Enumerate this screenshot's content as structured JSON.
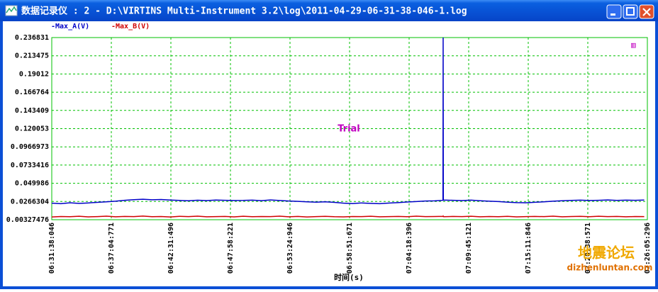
{
  "window": {
    "title": "数据记录仪 : 2 - D:\\VIRTINS Multi-Instrument 3.2\\log\\2011-04-29-06-31-38-046-1.log"
  },
  "chart_data": {
    "type": "line",
    "annotation": "Trial",
    "x_label": "时间(s)",
    "x": [
      0,
      50,
      100,
      150,
      200,
      250,
      300,
      350,
      400,
      450,
      500,
      550,
      600,
      650,
      700,
      750,
      800,
      850,
      900,
      950,
      1000,
      1050,
      1100,
      1150,
      1200,
      1250,
      1300,
      1350,
      1400,
      1450,
      1500,
      1550,
      1600,
      1650,
      1700,
      1750,
      1800,
      1850,
      1900,
      1950,
      2000,
      2050,
      2100,
      2146,
      2147,
      2148,
      2150,
      2200,
      2250,
      2300,
      2350,
      2400,
      2450,
      2500,
      2550,
      2600,
      2650,
      2700,
      2750,
      2800,
      2850,
      2900,
      2950,
      3000,
      3050,
      3100,
      3150,
      3200,
      3250
    ],
    "series": [
      {
        "name": "-Max_A(V)",
        "color": "#0000c8",
        "values": [
          0.0245,
          0.0238,
          0.025,
          0.0242,
          0.0248,
          0.0255,
          0.0262,
          0.027,
          0.0282,
          0.029,
          0.0295,
          0.0288,
          0.0292,
          0.0285,
          0.028,
          0.0276,
          0.0283,
          0.0278,
          0.0285,
          0.0281,
          0.0279,
          0.028,
          0.0284,
          0.0277,
          0.0286,
          0.0279,
          0.0272,
          0.0268,
          0.0262,
          0.0258,
          0.0262,
          0.0255,
          0.0245,
          0.024,
          0.0248,
          0.0242,
          0.0238,
          0.0246,
          0.0252,
          0.026,
          0.0266,
          0.0272,
          0.0275,
          0.0282,
          0.2368,
          0.029,
          0.0285,
          0.0281,
          0.0278,
          0.0284,
          0.0276,
          0.027,
          0.0266,
          0.0258,
          0.0252,
          0.025,
          0.0256,
          0.0262,
          0.027,
          0.0276,
          0.028,
          0.0284,
          0.0279,
          0.0282,
          0.0286,
          0.028,
          0.0284,
          0.0282,
          0.0285
        ]
      },
      {
        "name": "-Max_B(V)",
        "color": "#d00000",
        "values": [
          0.0068,
          0.0074,
          0.0071,
          0.0077,
          0.0069,
          0.0073,
          0.0078,
          0.007,
          0.0075,
          0.0072,
          0.0079,
          0.0071,
          0.0074,
          0.0068,
          0.0076,
          0.0072,
          0.0078,
          0.007,
          0.0073,
          0.0075,
          0.0069,
          0.0077,
          0.0071,
          0.0074,
          0.0072,
          0.0078,
          0.007,
          0.0075,
          0.0068,
          0.0073,
          0.0076,
          0.0071,
          0.0069,
          0.0074,
          0.0072,
          0.0077,
          0.007,
          0.0073,
          0.0075,
          0.0071,
          0.0078,
          0.0072,
          0.0074,
          0.0076,
          0.0079,
          0.0073,
          0.0071,
          0.0075,
          0.0072,
          0.0077,
          0.007,
          0.0074,
          0.0071,
          0.0076,
          0.0069,
          0.0073,
          0.0075,
          0.0072,
          0.0078,
          0.007,
          0.0074,
          0.0076,
          0.0071,
          0.0077,
          0.0073,
          0.0075,
          0.007,
          0.0074,
          0.0072
        ]
      }
    ],
    "xlim": [
      0,
      3267.25
    ],
    "xticks": [
      {
        "value": 0,
        "label": "06:31:38:046"
      },
      {
        "value": 326.725,
        "label": "06:37:04:771"
      },
      {
        "value": 653.45,
        "label": "06:42:31:496"
      },
      {
        "value": 980.175,
        "label": "06:47:58:221"
      },
      {
        "value": 1306.9,
        "label": "06:53:24:946"
      },
      {
        "value": 1633.625,
        "label": "06:58:51:671"
      },
      {
        "value": 1960.35,
        "label": "07:04:18:396"
      },
      {
        "value": 2287.075,
        "label": "07:09:45:121"
      },
      {
        "value": 2613.8,
        "label": "07:15:11:846"
      },
      {
        "value": 2940.525,
        "label": "07:20:38:571"
      },
      {
        "value": 3267.25,
        "label": "07:26:05:296"
      }
    ],
    "ylim": [
      0.00327476,
      0.236831
    ],
    "yticks": [
      0.00327476,
      0.0266304,
      0.049986,
      0.0733416,
      0.0966973,
      0.120053,
      0.143409,
      0.166764,
      0.19012,
      0.213475,
      0.236831
    ],
    "grid": true
  },
  "watermark": {
    "site_cn": "地震论坛",
    "site_url": "dizhenluntan.com"
  }
}
